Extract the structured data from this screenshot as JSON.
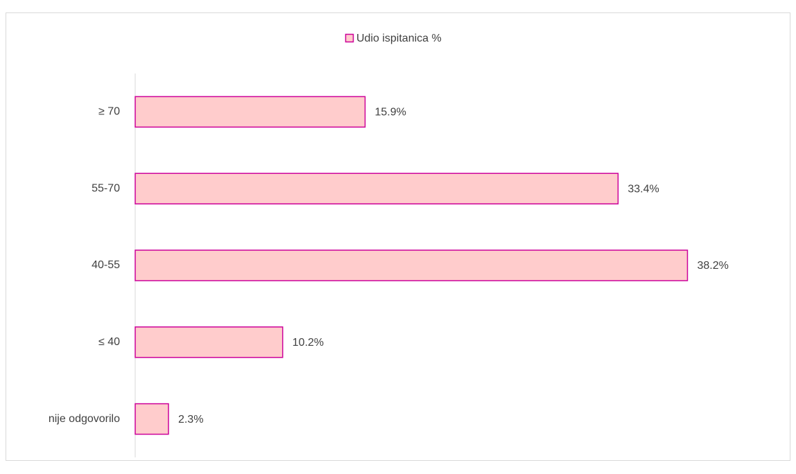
{
  "chart_data": {
    "type": "barh",
    "legend": "Udio ispitanica %",
    "categories": [
      "≥ 70",
      "55-70",
      "40-55",
      "≤ 40",
      "nije odgovorilo"
    ],
    "values": [
      15.9,
      33.4,
      38.2,
      10.2,
      2.3
    ],
    "value_labels": [
      "15.9%",
      "33.4%",
      "38.2%",
      "10.2%",
      "2.3%"
    ],
    "color": "#ffcccc",
    "edge_color": "#cc0099",
    "xlim": [
      0,
      40
    ],
    "legend_position": "top"
  }
}
